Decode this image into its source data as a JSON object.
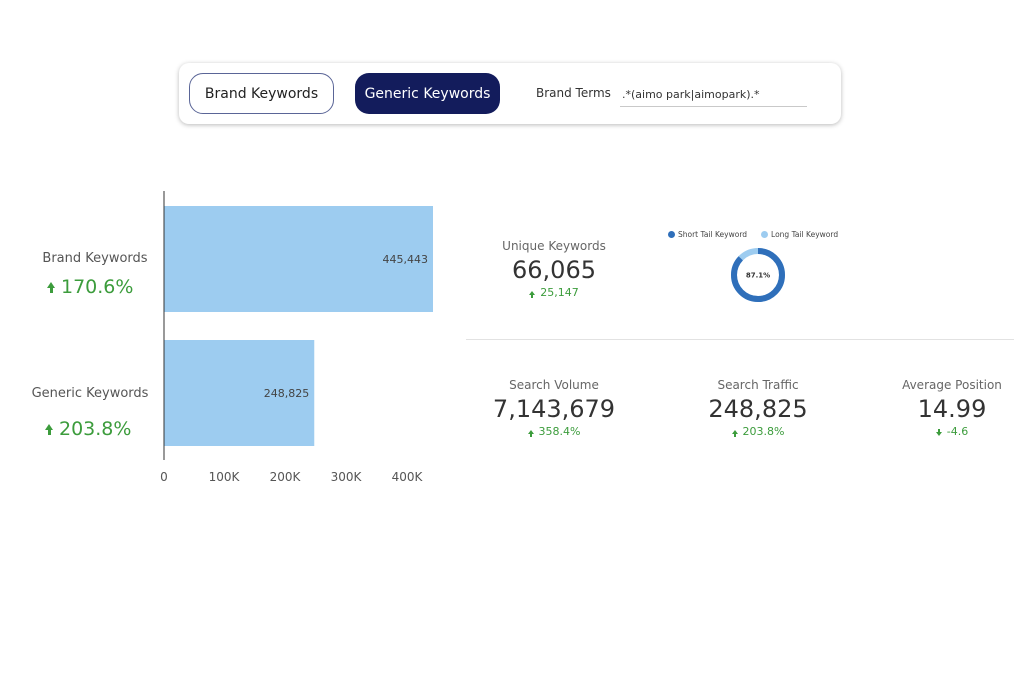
{
  "toolbar": {
    "brand_button": "Brand Keywords",
    "generic_button": "Generic Keywords",
    "brand_terms_label": "Brand Terms",
    "brand_terms_value": ".*(aimo park|aimopark).*"
  },
  "colors": {
    "bar": "#9dccf0",
    "accent_navy": "#131c5c",
    "positive": "#3c9c3c",
    "short_tail": "#2f6fba",
    "long_tail": "#9dccf0"
  },
  "categories": [
    {
      "label": "Brand Keywords",
      "change": "170.6%",
      "trend": "up"
    },
    {
      "label": "Generic Keywords",
      "change": "203.8%",
      "trend": "up"
    }
  ],
  "chart_data": {
    "type": "bar",
    "orientation": "horizontal",
    "categories": [
      "Brand Keywords",
      "Generic Keywords"
    ],
    "values": [
      445443,
      248825
    ],
    "value_labels": [
      "445,443",
      "248,825"
    ],
    "xlim": [
      0,
      445443
    ],
    "xticks": [
      0,
      100000,
      200000,
      300000,
      400000
    ],
    "xtick_labels": [
      "0",
      "100K",
      "200K",
      "300K",
      "400K"
    ],
    "grid": false
  },
  "unique_keywords": {
    "label": "Unique Keywords",
    "value": "66,065",
    "change": "25,147",
    "trend": "up"
  },
  "donut": {
    "legend": [
      {
        "label": "Short Tail Keyword",
        "color": "#2f6fba"
      },
      {
        "label": "Long Tail Keyword",
        "color": "#9dccf0"
      }
    ],
    "short_tail_share": 0.871,
    "center_label": "87.1%"
  },
  "metrics": [
    {
      "label": "Search Volume",
      "value": "7,143,679",
      "change": "358.4%",
      "trend": "up"
    },
    {
      "label": "Search Traffic",
      "value": "248,825",
      "change": "203.8%",
      "trend": "up"
    },
    {
      "label": "Average Position",
      "value": "14.99",
      "change": "-4.6",
      "trend": "down"
    }
  ]
}
